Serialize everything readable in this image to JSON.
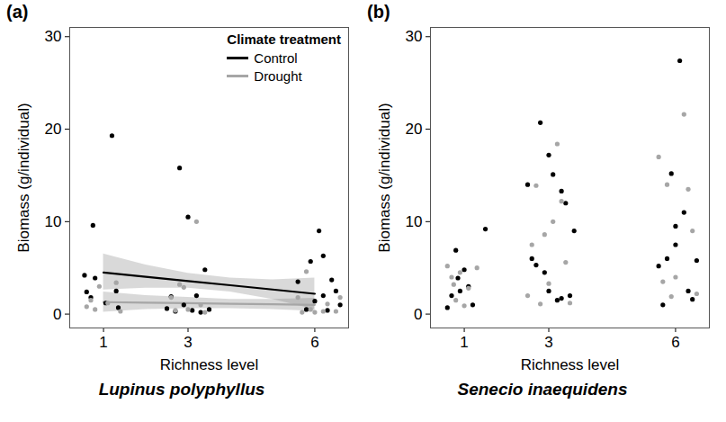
{
  "chart_data": [
    {
      "type": "scatter",
      "panel_label": "(a)",
      "title": "Lupinus polyphyllus",
      "x_label": "Richness level",
      "y_label": "Biomass (g/individual)",
      "xlim": [
        0.2,
        6.8
      ],
      "xticks": [
        1,
        3,
        6
      ],
      "ylim": [
        -1.5,
        31
      ],
      "yticks": [
        0,
        10,
        20,
        30
      ],
      "legend": "top-right",
      "legend_title": "Climate treatment",
      "series": [
        {
          "name": "Control",
          "color": "#000000",
          "marker": "circle",
          "x": [
            0.55,
            0.6,
            0.7,
            0.75,
            0.8,
            1.05,
            1.2,
            1.35,
            1.3,
            2.5,
            2.6,
            2.7,
            2.8,
            2.9,
            3.0,
            3.1,
            3.2,
            3.3,
            3.4,
            3.5,
            5.6,
            5.8,
            5.9,
            6.0,
            6.1,
            6.2,
            6.3,
            6.4,
            6.5,
            6.6,
            6.2
          ],
          "values": [
            4.2,
            2.4,
            1.8,
            9.6,
            3.9,
            1.2,
            19.3,
            0.7,
            2.5,
            0.6,
            1.9,
            0.3,
            15.8,
            1.0,
            10.5,
            0.4,
            2.0,
            0.2,
            4.8,
            0.5,
            3.5,
            0.5,
            5.7,
            1.4,
            9.0,
            2.0,
            0.4,
            3.7,
            2.5,
            1.0,
            6.3
          ],
          "fit": {
            "line_style": "solid",
            "x": [
              1,
              2,
              3,
              4,
              5,
              6
            ],
            "values": [
              4.5,
              4.04,
              3.58,
              3.12,
              2.66,
              2.2
            ],
            "band_lower": [
              2.6,
              2.8,
              2.8,
              2.4,
              1.6,
              0.5
            ],
            "band_upper": [
              6.5,
              5.3,
              4.4,
              3.9,
              3.7,
              3.9
            ]
          }
        },
        {
          "name": "Drought",
          "color": "#a6a6a6",
          "marker": "circle",
          "x": [
            0.6,
            0.7,
            0.8,
            0.9,
            1.1,
            1.4,
            1.3,
            2.6,
            2.7,
            2.9,
            3.0,
            3.2,
            3.3,
            3.4,
            2.8,
            5.6,
            5.7,
            5.9,
            6.0,
            6.2,
            6.3,
            6.5,
            6.6,
            5.8
          ],
          "values": [
            0.8,
            1.5,
            0.5,
            3.0,
            1.2,
            0.3,
            3.4,
            1.8,
            0.4,
            2.9,
            0.5,
            10.0,
            1.0,
            0.2,
            3.2,
            1.8,
            0.2,
            0.5,
            0.2,
            0.3,
            1.1,
            0.3,
            1.8,
            4.6
          ],
          "fit": {
            "line_style": "solid",
            "x": [
              1,
              2,
              3,
              4,
              5,
              6
            ],
            "values": [
              1.3,
              1.24,
              1.18,
              1.12,
              1.06,
              1.0
            ],
            "band_lower": [
              0.2,
              0.5,
              0.6,
              0.6,
              0.5,
              0.3
            ],
            "band_upper": [
              2.4,
              2.0,
              1.8,
              1.6,
              1.6,
              1.7
            ]
          }
        }
      ]
    },
    {
      "type": "scatter",
      "panel_label": "(b)",
      "title": "Senecio inaequidens",
      "x_label": "Richness level",
      "y_label": "Biomass (g/individual)",
      "xlim": [
        0.2,
        6.8
      ],
      "xticks": [
        1,
        3,
        6
      ],
      "ylim": [
        -1.5,
        31
      ],
      "yticks": [
        0,
        10,
        20,
        30
      ],
      "series": [
        {
          "name": "Control",
          "color": "#000000",
          "marker": "circle",
          "x": [
            0.6,
            0.7,
            0.8,
            0.9,
            1.0,
            1.1,
            1.2,
            1.5,
            0.85,
            2.5,
            2.6,
            2.7,
            2.8,
            2.9,
            3.0,
            3.1,
            3.2,
            3.3,
            3.4,
            3.5,
            3.6,
            3.0,
            3.3,
            5.6,
            5.7,
            5.8,
            5.9,
            6.0,
            6.1,
            6.2,
            6.3,
            6.4,
            6.0,
            6.5
          ],
          "values": [
            0.7,
            2.0,
            6.9,
            2.5,
            4.8,
            3.0,
            1.0,
            9.2,
            3.9,
            14.0,
            6.0,
            5.3,
            20.7,
            4.5,
            17.2,
            15.1,
            1.5,
            13.3,
            12.0,
            2.0,
            9.0,
            2.5,
            1.7,
            5.2,
            1.0,
            6.0,
            15.2,
            7.5,
            27.4,
            11.0,
            2.5,
            1.6,
            9.5,
            5.8
          ]
        },
        {
          "name": "Drought",
          "color": "#a6a6a6",
          "marker": "circle",
          "x": [
            0.6,
            0.7,
            0.8,
            0.9,
            1.0,
            1.1,
            1.3,
            0.75,
            2.5,
            2.6,
            2.7,
            2.8,
            2.9,
            3.0,
            3.1,
            3.2,
            3.4,
            3.5,
            3.3,
            5.6,
            5.7,
            5.8,
            5.9,
            6.0,
            6.2,
            6.4,
            6.5,
            6.3
          ],
          "values": [
            5.2,
            4.0,
            1.5,
            4.5,
            0.9,
            2.8,
            5.0,
            3.2,
            2.0,
            7.5,
            13.9,
            1.1,
            8.6,
            3.3,
            10.0,
            18.4,
            5.6,
            1.2,
            12.2,
            17.0,
            3.5,
            14.0,
            1.9,
            4.0,
            21.6,
            9.0,
            2.2,
            13.5
          ]
        }
      ]
    }
  ]
}
